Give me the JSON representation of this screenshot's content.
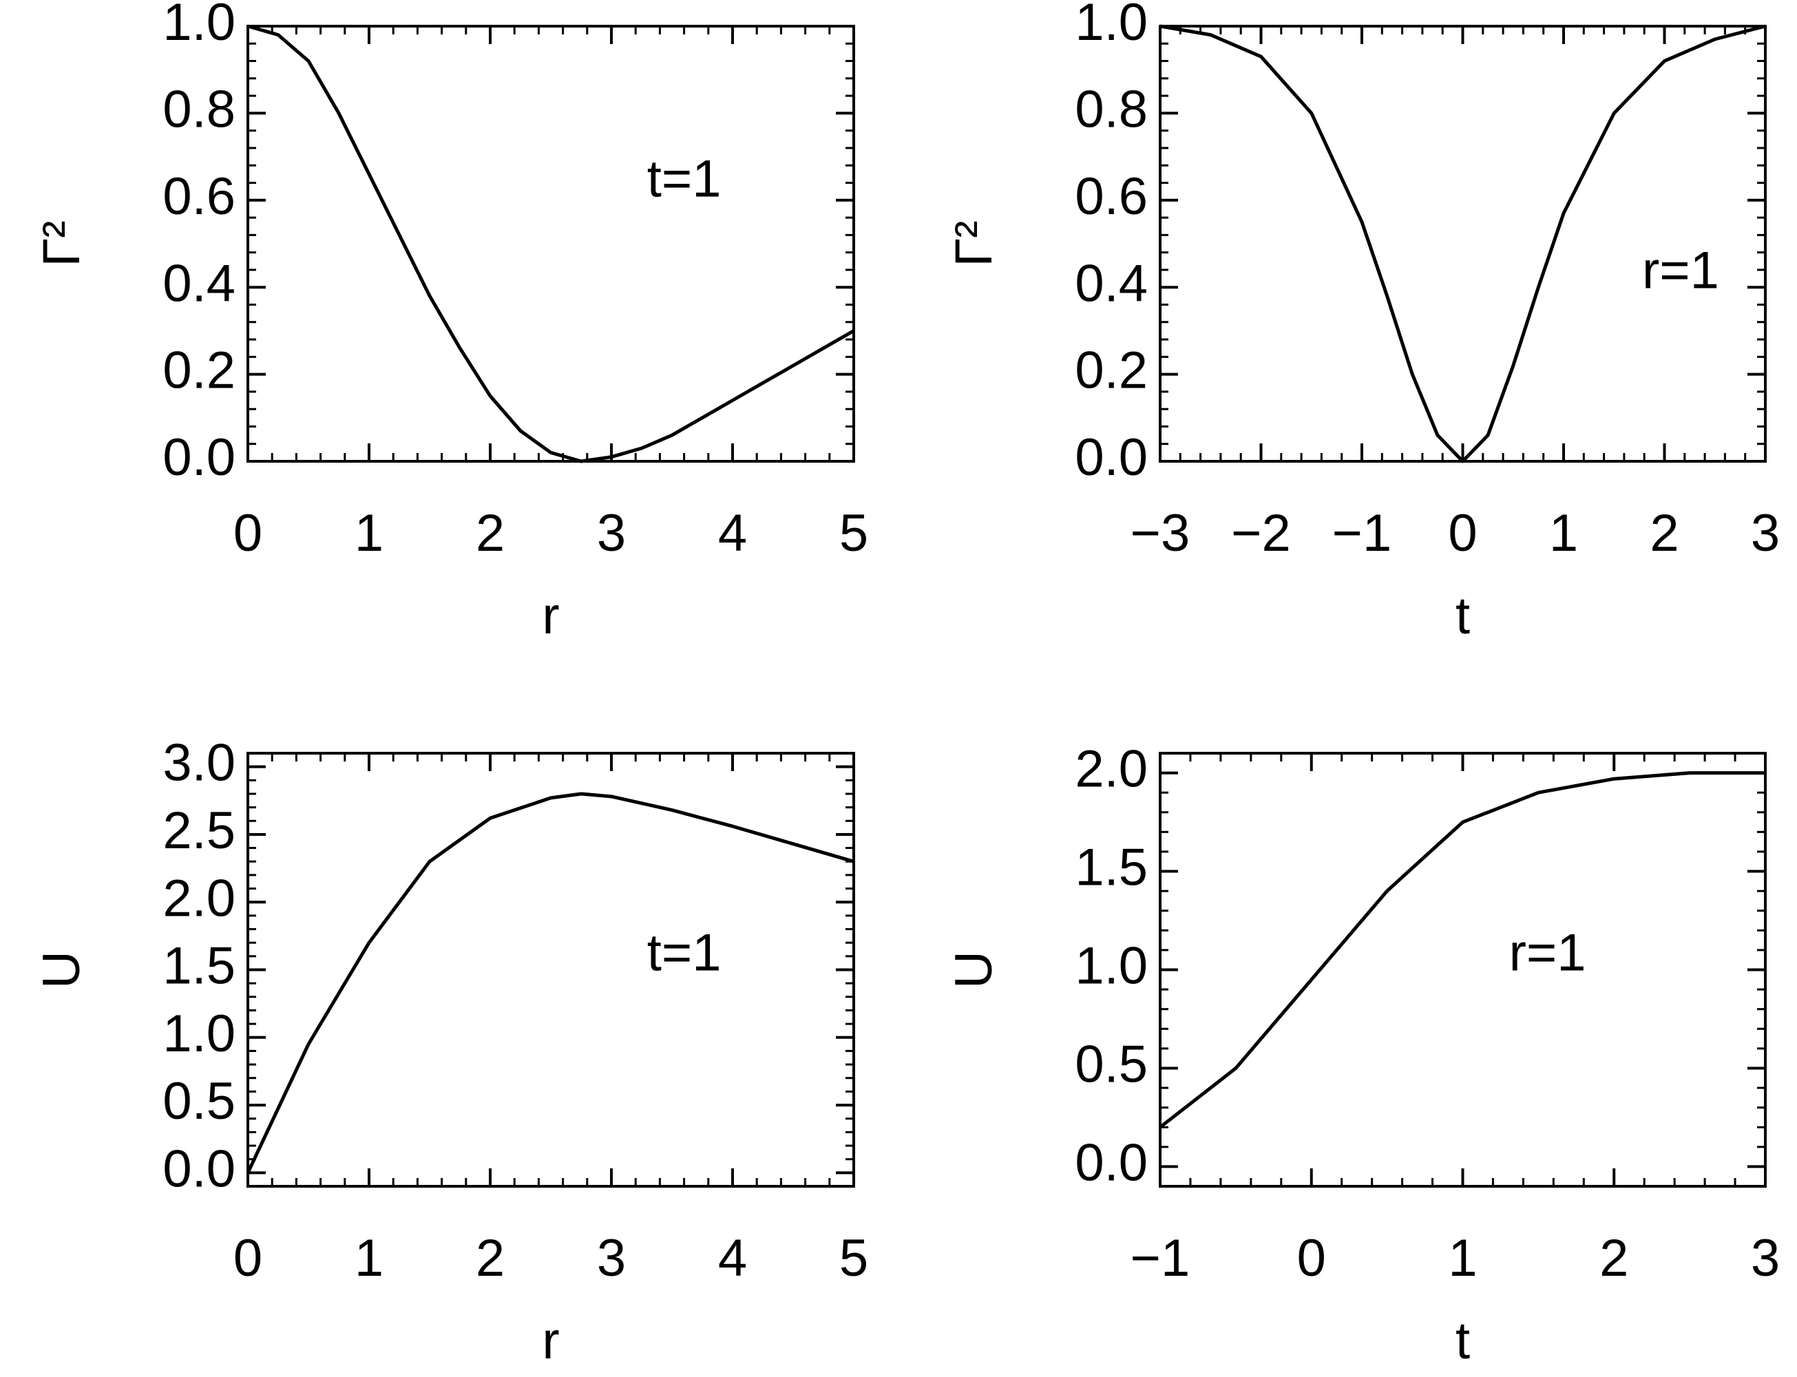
{
  "chart_data": [
    {
      "type": "line",
      "x_label": "r",
      "y_label": "Γ²",
      "annotation": "t=1",
      "x": [
        0,
        0.25,
        0.5,
        0.75,
        1,
        1.25,
        1.5,
        1.75,
        2,
        2.25,
        2.5,
        2.75,
        3,
        3.25,
        3.5,
        3.75,
        4,
        4.25,
        4.5,
        4.75,
        5
      ],
      "series": [
        {
          "color": "#000000",
          "values": [
            1.0,
            0.98,
            0.92,
            0.8,
            0.66,
            0.52,
            0.38,
            0.26,
            0.15,
            0.07,
            0.02,
            0.0,
            0.01,
            0.03,
            0.06,
            0.1,
            0.14,
            0.18,
            0.22,
            0.26,
            0.3
          ]
        }
      ],
      "xlim": [
        0,
        5
      ],
      "ylim": [
        0,
        1.0
      ],
      "xticks": [
        0,
        1,
        2,
        3,
        4,
        5
      ],
      "yticks": [
        {
          "value": 0,
          "label": "0.0"
        },
        {
          "value": 0.2,
          "label": "0.2"
        },
        {
          "value": 0.4,
          "label": "0.4"
        },
        {
          "value": 0.6,
          "label": "0.6"
        },
        {
          "value": 0.8,
          "label": "0.8"
        },
        {
          "value": 1,
          "label": "1.0"
        }
      ]
    },
    {
      "type": "line",
      "x_label": "t",
      "y_label": "Γ²",
      "annotation": "r=1",
      "x": [
        -3,
        -2.5,
        -2,
        -1.5,
        -1,
        -0.75,
        -0.5,
        -0.25,
        0,
        0.25,
        0.5,
        0.75,
        1,
        1.5,
        2,
        2.5,
        3
      ],
      "series": [
        {
          "color": "#000000",
          "values": [
            1.0,
            0.98,
            0.93,
            0.8,
            0.55,
            0.38,
            0.2,
            0.06,
            0.0,
            0.06,
            0.22,
            0.4,
            0.57,
            0.8,
            0.92,
            0.97,
            1.0
          ]
        }
      ],
      "xlim": [
        -3,
        3
      ],
      "ylim": [
        0,
        1.0
      ],
      "xticks": [
        {
          "value": -3,
          "label": "−3"
        },
        {
          "value": -2,
          "label": "−2"
        },
        {
          "value": -1,
          "label": "−1"
        },
        0,
        1,
        2,
        3
      ],
      "yticks": [
        {
          "value": 0,
          "label": "0.0"
        },
        {
          "value": 0.2,
          "label": "0.2"
        },
        {
          "value": 0.4,
          "label": "0.4"
        },
        {
          "value": 0.6,
          "label": "0.6"
        },
        {
          "value": 0.8,
          "label": "0.8"
        },
        {
          "value": 1,
          "label": "1.0"
        }
      ]
    },
    {
      "type": "line",
      "x_label": "r",
      "y_label": "U",
      "annotation": "t=1",
      "x": [
        0,
        0.5,
        1,
        1.5,
        2,
        2.5,
        2.75,
        3,
        3.5,
        4,
        4.5,
        5
      ],
      "series": [
        {
          "color": "#000000",
          "values": [
            0.0,
            0.95,
            1.7,
            2.3,
            2.62,
            2.77,
            2.8,
            2.78,
            2.68,
            2.56,
            2.43,
            2.3
          ]
        }
      ],
      "xlim": [
        0,
        5
      ],
      "ylim": [
        -0.1,
        3.1
      ],
      "xticks": [
        0,
        1,
        2,
        3,
        4,
        5
      ],
      "yticks": [
        {
          "value": 0,
          "label": "0.0"
        },
        {
          "value": 0.5,
          "label": "0.5"
        },
        {
          "value": 1,
          "label": "1.0"
        },
        {
          "value": 1.5,
          "label": "1.5"
        },
        {
          "value": 2,
          "label": "2.0"
        },
        {
          "value": 2.5,
          "label": "2.5"
        },
        {
          "value": 3,
          "label": "3.0"
        }
      ]
    },
    {
      "type": "line",
      "x_label": "t",
      "y_label": "U",
      "annotation": "r=1",
      "x": [
        -1,
        -0.5,
        0,
        0.5,
        1,
        1.5,
        2,
        2.5,
        3
      ],
      "series": [
        {
          "color": "#000000",
          "values": [
            0.2,
            0.5,
            0.95,
            1.4,
            1.75,
            1.9,
            1.97,
            2.0,
            2.0
          ]
        }
      ],
      "xlim": [
        -1,
        3
      ],
      "ylim": [
        -0.1,
        2.1
      ],
      "xticks": [
        {
          "value": -1,
          "label": "−1"
        },
        0,
        1,
        2,
        3
      ],
      "yticks": [
        {
          "value": 0,
          "label": "0.0"
        },
        {
          "value": 0.5,
          "label": "0.5"
        },
        {
          "value": 1,
          "label": "1.0"
        },
        {
          "value": 1.5,
          "label": "1.5"
        },
        {
          "value": 2,
          "label": "2.0"
        }
      ]
    }
  ]
}
